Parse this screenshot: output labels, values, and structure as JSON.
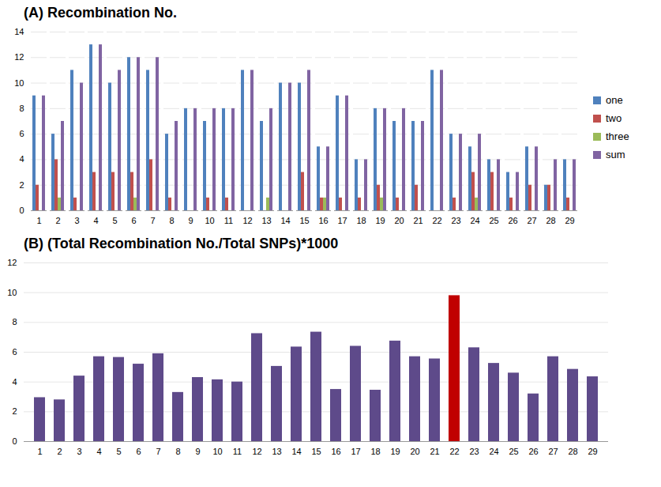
{
  "chart_data": [
    {
      "type": "bar",
      "title": "(A)  Recombination No.",
      "categories": [
        1,
        2,
        3,
        4,
        5,
        6,
        7,
        8,
        9,
        10,
        11,
        12,
        13,
        14,
        15,
        16,
        17,
        18,
        19,
        20,
        21,
        22,
        23,
        24,
        25,
        26,
        27,
        28,
        29
      ],
      "series": [
        {
          "name": "one",
          "color": "#4f81bd",
          "values": [
            9,
            6,
            11,
            13,
            10,
            12,
            11,
            6,
            8,
            7,
            8,
            11,
            7,
            10,
            10,
            5,
            9,
            4,
            8,
            7,
            7,
            11,
            6,
            5,
            4,
            3,
            5,
            2,
            4
          ]
        },
        {
          "name": "two",
          "color": "#c0504d",
          "values": [
            2,
            4,
            1,
            3,
            3,
            3,
            4,
            1,
            0,
            1,
            1,
            0,
            0,
            0,
            3,
            1,
            1,
            1,
            2,
            1,
            2,
            0,
            1,
            3,
            3,
            1,
            2,
            2,
            1
          ]
        },
        {
          "name": "three",
          "color": "#9bbb59",
          "values": [
            0,
            1,
            0,
            0,
            0,
            1,
            0,
            0,
            0,
            0,
            0,
            0,
            1,
            0,
            0,
            1,
            0,
            0,
            1,
            0,
            0,
            0,
            0,
            1,
            0,
            0,
            0,
            0,
            0
          ]
        },
        {
          "name": "sum",
          "color": "#8064a2",
          "values": [
            9,
            7,
            10,
            13,
            11,
            12,
            12,
            7,
            8,
            8,
            8,
            11,
            8,
            10,
            11,
            5,
            9,
            4,
            8,
            8,
            7,
            11,
            6,
            6,
            4,
            3,
            5,
            4,
            4
          ]
        }
      ],
      "ylim": [
        0,
        14
      ],
      "yticks": [
        0,
        2,
        4,
        6,
        8,
        10,
        12,
        14
      ],
      "grid": true,
      "legend": "right"
    },
    {
      "type": "bar",
      "title": "(B)  (Total Recombination No./Total SNPs)*1000",
      "categories": [
        1,
        2,
        3,
        4,
        5,
        6,
        7,
        8,
        9,
        10,
        11,
        12,
        13,
        14,
        15,
        16,
        17,
        18,
        19,
        20,
        21,
        22,
        23,
        24,
        25,
        26,
        27,
        28,
        29
      ],
      "values": [
        2.95,
        2.8,
        4.4,
        5.7,
        5.65,
        5.2,
        5.9,
        3.3,
        4.3,
        4.15,
        4.0,
        7.25,
        5.05,
        6.35,
        7.35,
        3.5,
        6.4,
        3.45,
        6.75,
        5.7,
        5.55,
        9.8,
        6.3,
        5.25,
        4.6,
        3.2,
        5.7,
        4.85,
        4.35
      ],
      "colors": [
        "#5e4a8a",
        "#5e4a8a",
        "#5e4a8a",
        "#5e4a8a",
        "#5e4a8a",
        "#5e4a8a",
        "#5e4a8a",
        "#5e4a8a",
        "#5e4a8a",
        "#5e4a8a",
        "#5e4a8a",
        "#5e4a8a",
        "#5e4a8a",
        "#5e4a8a",
        "#5e4a8a",
        "#5e4a8a",
        "#5e4a8a",
        "#5e4a8a",
        "#5e4a8a",
        "#5e4a8a",
        "#5e4a8a",
        "#c00000",
        "#5e4a8a",
        "#5e4a8a",
        "#5e4a8a",
        "#5e4a8a",
        "#5e4a8a",
        "#5e4a8a",
        "#5e4a8a"
      ],
      "ylim": [
        0,
        12
      ],
      "yticks": [
        0,
        2,
        4,
        6,
        8,
        10,
        12
      ],
      "grid": true
    }
  ]
}
